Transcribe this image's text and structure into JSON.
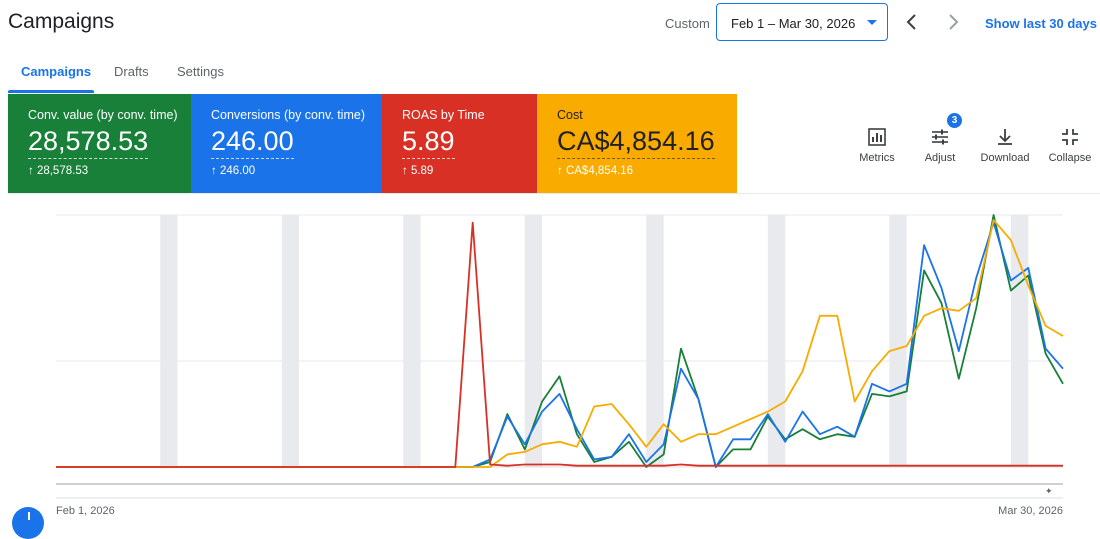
{
  "header": {
    "title": "Campaigns",
    "custom_label": "Custom",
    "date_range": "Feb 1 – Mar 30, 2026",
    "show_last": "Show last 30 days"
  },
  "tabs": [
    {
      "label": "Campaigns",
      "active": true
    },
    {
      "label": "Drafts",
      "active": false
    },
    {
      "label": "Settings",
      "active": false
    }
  ],
  "scorecards": [
    {
      "label": "Conv. value (by conv. time)",
      "value": "28,578.53",
      "delta": "↑ 28,578.53",
      "color": "#188038"
    },
    {
      "label": "Conversions (by conv. time)",
      "value": "246.00",
      "delta": "↑ 246.00",
      "color": "#1a73e8"
    },
    {
      "label": "ROAS by Time",
      "value": "5.89",
      "delta": "↑ 5.89",
      "color": "#d93025"
    },
    {
      "label": "Cost",
      "value": "CA$4,854.16",
      "delta": "↑ CA$4,854.16",
      "color": "#f9ab00"
    }
  ],
  "toolbar": {
    "metrics": "Metrics",
    "adjust": "Adjust",
    "adjust_badge": "3",
    "download": "Download",
    "collapse": "Collapse"
  },
  "chart_data": {
    "type": "line",
    "x_start_label": "Feb 1, 2026",
    "x_end_label": "Mar 30, 2026",
    "points": 59,
    "ylim": [
      0,
      1
    ],
    "weekend_bands": true,
    "series": [
      {
        "color": "#188038",
        "values": [
          0,
          0,
          0,
          0,
          0,
          0,
          0,
          0,
          0,
          0,
          0,
          0,
          0,
          0,
          0,
          0,
          0,
          0,
          0,
          0,
          0,
          0,
          0,
          0,
          0,
          0.02,
          0.21,
          0.07,
          0.26,
          0.36,
          0.13,
          0.02,
          0.04,
          0.1,
          0,
          0.05,
          0.47,
          0.27,
          0,
          0.07,
          0.07,
          0.2,
          0.11,
          0.15,
          0.11,
          0.13,
          0.12,
          0.29,
          0.28,
          0.3,
          0.78,
          0.65,
          0.35,
          0.63,
          1.0,
          0.7,
          0.76,
          0.45,
          0.33
        ]
      },
      {
        "color": "#1a73e8",
        "values": [
          0,
          0,
          0,
          0,
          0,
          0,
          0,
          0,
          0,
          0,
          0,
          0,
          0,
          0,
          0,
          0,
          0,
          0,
          0,
          0,
          0,
          0,
          0,
          0,
          0,
          0.03,
          0.2,
          0.09,
          0.22,
          0.29,
          0.15,
          0.03,
          0.04,
          0.13,
          0.02,
          0.09,
          0.39,
          0.27,
          0,
          0.11,
          0.11,
          0.21,
          0.1,
          0.22,
          0.13,
          0.16,
          0.12,
          0.33,
          0.3,
          0.33,
          0.88,
          0.71,
          0.46,
          0.75,
          0.97,
          0.74,
          0.79,
          0.47,
          0.39
        ]
      },
      {
        "color": "#f9ab00",
        "values": [
          0,
          0,
          0,
          0,
          0,
          0,
          0,
          0,
          0,
          0,
          0,
          0,
          0,
          0,
          0,
          0,
          0,
          0,
          0,
          0,
          0,
          0,
          0,
          0,
          0,
          0,
          0.05,
          0.06,
          0.09,
          0.1,
          0.08,
          0.24,
          0.25,
          0.17,
          0.08,
          0.17,
          0.1,
          0.13,
          0.13,
          0.16,
          0.19,
          0.22,
          0.26,
          0.38,
          0.6,
          0.6,
          0.26,
          0.38,
          0.46,
          0.48,
          0.6,
          0.63,
          0.62,
          0.67,
          0.98,
          0.9,
          0.72,
          0.56,
          0.52
        ]
      },
      {
        "color": "#d93025",
        "values": [
          0,
          0,
          0,
          0,
          0,
          0,
          0,
          0,
          0,
          0,
          0,
          0,
          0,
          0,
          0,
          0,
          0,
          0,
          0,
          0,
          0,
          0,
          0,
          0,
          0.97,
          0.01,
          0.005,
          0.01,
          0.01,
          0.01,
          0.005,
          0.005,
          0.005,
          0.005,
          0.005,
          0.005,
          0.01,
          0.005,
          0.005,
          0.005,
          0.005,
          0.005,
          0.005,
          0.005,
          0.005,
          0.005,
          0.005,
          0.005,
          0.005,
          0.005,
          0.005,
          0.005,
          0.005,
          0.005,
          0.005,
          0.005,
          0.005,
          0.005,
          0.005
        ]
      }
    ]
  }
}
